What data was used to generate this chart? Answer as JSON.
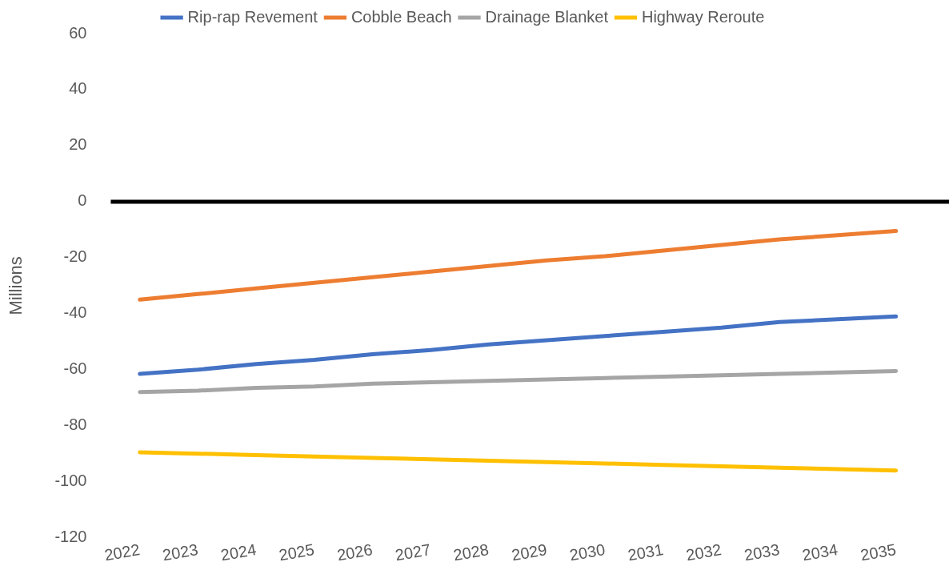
{
  "chart_data": {
    "type": "line",
    "ylabel": "Millions",
    "categories": [
      "2022",
      "2023",
      "2024",
      "2025",
      "2026",
      "2027",
      "2028",
      "2029",
      "2030",
      "2031",
      "2032",
      "2033",
      "2034",
      "2035"
    ],
    "series": [
      {
        "name": "Rip-rap Revement",
        "color": "#4472c4",
        "values": [
          -61.5,
          -60,
          -58,
          -56.5,
          -54.5,
          -53,
          -51,
          -49.5,
          -48,
          -46.5,
          -45,
          -43,
          -42,
          -41
        ]
      },
      {
        "name": "Cobble Beach",
        "color": "#ed7d31",
        "values": [
          -35,
          -33,
          -31,
          -29,
          -27,
          -25,
          -23,
          -21,
          -19.5,
          -17.5,
          -15.5,
          -13.5,
          -12,
          -10.5
        ]
      },
      {
        "name": "Drainage Blanket",
        "color": "#a5a5a5",
        "values": [
          -68,
          -67.5,
          -66.5,
          -66,
          -65,
          -64.5,
          -64,
          -63.5,
          -63,
          -62.5,
          -62,
          -61.5,
          -61,
          -60.5
        ]
      },
      {
        "name": "Highway Reroute",
        "color": "#ffc000",
        "values": [
          -89.5,
          -90,
          -90.5,
          -91,
          -91.5,
          -92,
          -92.5,
          -93,
          -93.5,
          -94,
          -94.5,
          -95,
          -95.5,
          -96
        ]
      }
    ],
    "ylim": [
      -120,
      60
    ],
    "yticks": [
      -120,
      -100,
      -80,
      -60,
      -40,
      -20,
      0,
      20,
      40,
      60
    ],
    "ref_lines": [
      {
        "axis": "y",
        "value": 0,
        "color": "#000000"
      }
    ],
    "grid": false,
    "legend": "top",
    "marker": "none",
    "line_style": "solid"
  }
}
